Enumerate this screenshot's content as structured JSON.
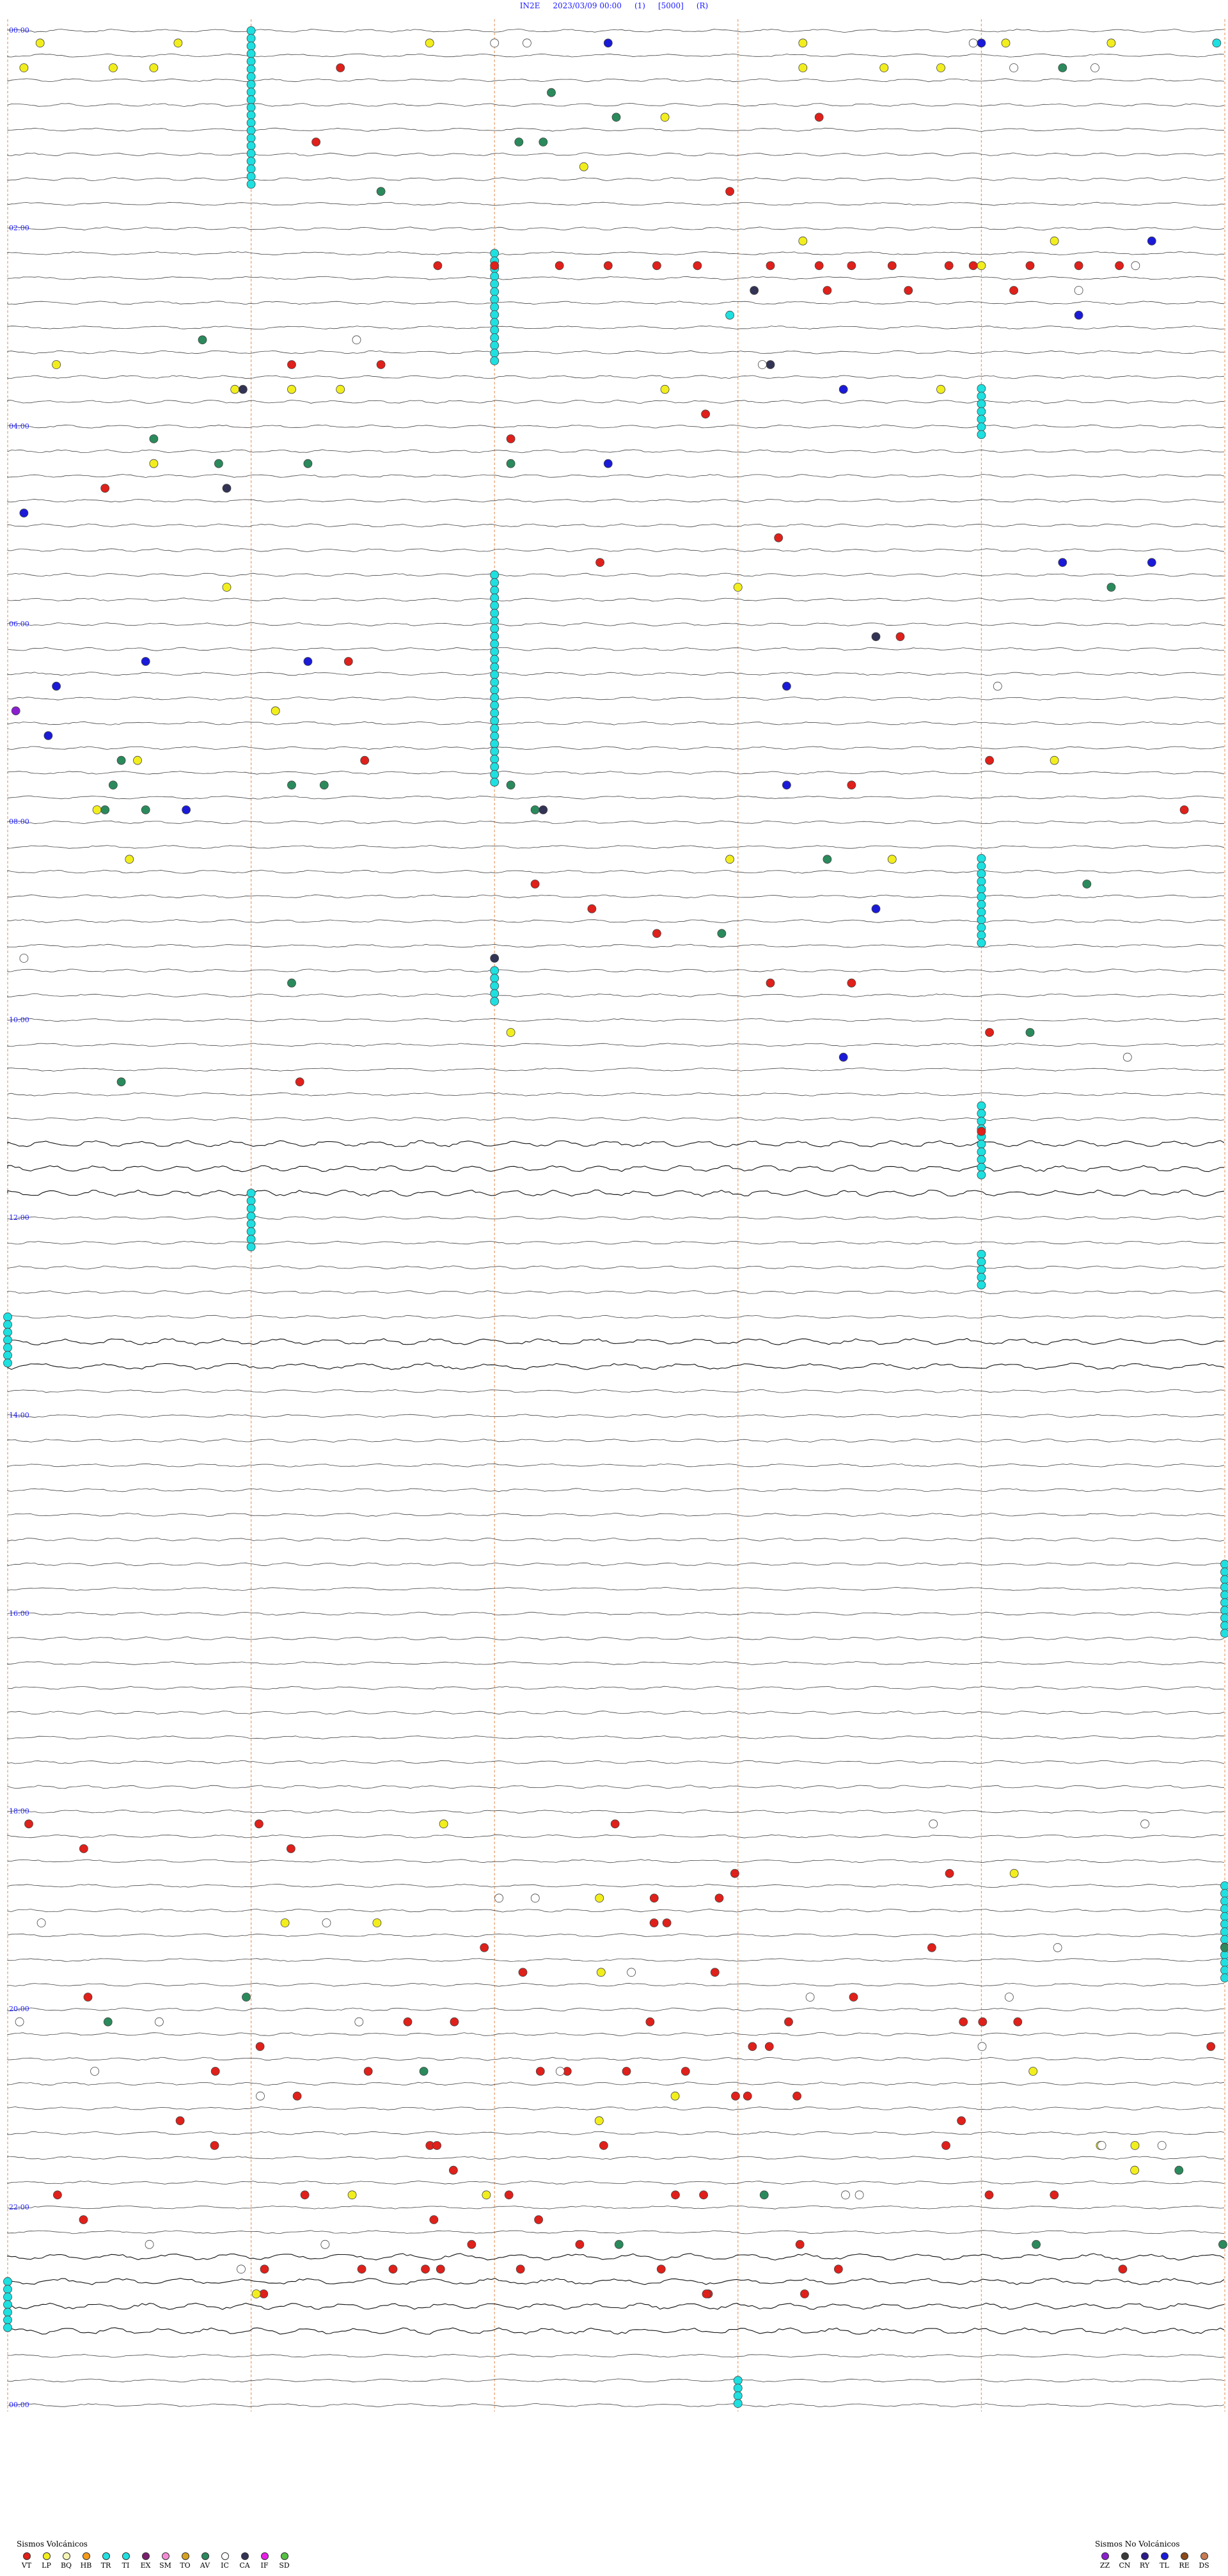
{
  "header": {
    "station": "IN2E",
    "datetime": "2023/03/09 00:00",
    "mode": "(1)",
    "gain": "[5000]",
    "flag": "(R)"
  },
  "time_labels": [
    "00:00",
    "02:00",
    "04:00",
    "06:00",
    "08:00",
    "10:00",
    "12:00",
    "14:00",
    "16:00",
    "18:00",
    "20:00",
    "22:00",
    "00:00"
  ],
  "legend": {
    "volcanic": {
      "title": "Sismos Volcánicos",
      "items": [
        {
          "code": "VT",
          "color": "#e0201a"
        },
        {
          "code": "LP",
          "color": "#f2ee1e"
        },
        {
          "code": "BQ",
          "color": "#f5f5b8"
        },
        {
          "code": "HB",
          "color": "#f39a1c"
        },
        {
          "code": "TR",
          "color": "#21e0e0"
        },
        {
          "code": "TI",
          "color": "#1ee0e0"
        },
        {
          "code": "EX",
          "color": "#7a1f6e"
        },
        {
          "code": "SM",
          "color": "#f58bd6"
        },
        {
          "code": "TO",
          "color": "#d8a21e"
        },
        {
          "code": "AV",
          "color": "#2a8a5c"
        },
        {
          "code": "IC",
          "color": "#ffffff"
        },
        {
          "code": "CA",
          "color": "#333355"
        },
        {
          "code": "IF",
          "color": "#e81ee8"
        },
        {
          "code": "SD",
          "color": "#55c043"
        }
      ]
    },
    "non_volcanic": {
      "title": "Sismos No Volcánicos",
      "items": [
        {
          "code": "ZZ",
          "color": "#8a1fcf"
        },
        {
          "code": "CN",
          "color": "#3a3a3a"
        },
        {
          "code": "RY",
          "color": "#2a1a8a"
        },
        {
          "code": "TL",
          "color": "#1a1ad8"
        },
        {
          "code": "RE",
          "color": "#8a4a1a"
        },
        {
          "code": "DS",
          "color": "#c87a52"
        }
      ]
    }
  },
  "chart_data": {
    "type": "scatter",
    "title": "IN2E 2023/03/09 00:00 (1) [5000] (R)",
    "x_unit": "minutes within 15-min line",
    "xlim": [
      0,
      15
    ],
    "ylim": [
      "00:00",
      "24:00"
    ],
    "y_unit": "hour of day",
    "grid": true,
    "legend_position": "bottom",
    "note_colors": "see legend",
    "events": [
      {
        "t": "00:01",
        "x": 0.4,
        "code": "LP"
      },
      {
        "t": "00:01",
        "x": 2.1,
        "code": "LP"
      },
      {
        "t": "00:01",
        "x": 5.2,
        "code": "LP"
      },
      {
        "t": "00:01",
        "x": 6.4,
        "code": "IC"
      },
      {
        "t": "00:01",
        "x": 9.8,
        "code": "LP"
      },
      {
        "t": "00:01",
        "x": 11.9,
        "code": "IC"
      },
      {
        "t": "00:01",
        "x": 14.9,
        "code": "TI"
      },
      {
        "t": "00:11",
        "x": 6.0,
        "code": "IC"
      },
      {
        "t": "00:11",
        "x": 7.4,
        "code": "TL"
      },
      {
        "t": "00:11",
        "x": 12.0,
        "code": "TL"
      },
      {
        "t": "00:11",
        "x": 12.3,
        "code": "LP"
      },
      {
        "t": "00:11",
        "x": 13.6,
        "code": "LP"
      },
      {
        "t": "00:15",
        "x": 0.2,
        "code": "LP"
      },
      {
        "t": "00:15",
        "x": 1.3,
        "code": "LP"
      },
      {
        "t": "00:15",
        "x": 1.8,
        "code": "LP"
      },
      {
        "t": "00:15",
        "x": 9.8,
        "code": "LP"
      },
      {
        "t": "00:15",
        "x": 10.8,
        "code": "LP"
      },
      {
        "t": "00:15",
        "x": 11.5,
        "code": "LP"
      },
      {
        "t": "00:15",
        "x": 12.4,
        "code": "IC"
      },
      {
        "t": "00:15",
        "x": 13.4,
        "code": "IC"
      },
      {
        "t": "00:22",
        "x": 4.1,
        "code": "VT"
      },
      {
        "t": "00:22",
        "x": 13.0,
        "code": "AV"
      },
      {
        "t": "00:37",
        "x": 6.7,
        "code": "AV"
      },
      {
        "t": "00:45",
        "x": 7.5,
        "code": "AV"
      },
      {
        "t": "00:52",
        "x": 8.1,
        "code": "LP"
      },
      {
        "t": "00:52",
        "x": 10.0,
        "code": "VT"
      },
      {
        "t": "01:00",
        "x": 6.6,
        "code": "AV"
      },
      {
        "t": "01:11",
        "x": 3.8,
        "code": "VT"
      },
      {
        "t": "01:11",
        "x": 6.3,
        "code": "AV"
      },
      {
        "t": "01:22",
        "x": 7.1,
        "code": "LP"
      },
      {
        "t": "01:30",
        "x": 8.9,
        "code": "VT"
      },
      {
        "t": "01:37",
        "x": 4.6,
        "code": "AV"
      },
      {
        "t": "02:00",
        "x": 9.8,
        "code": "LP"
      },
      {
        "t": "02:00",
        "x": 12.9,
        "code": "LP"
      },
      {
        "t": "02:00",
        "x": 14.1,
        "code": "TL"
      },
      {
        "t": "02:15",
        "x": 12.0,
        "code": "LP"
      },
      {
        "t": "02:15",
        "x": 13.9,
        "code": "IC"
      },
      {
        "t": "02:22",
        "x": 5.3,
        "code": "VT"
      },
      {
        "t": "02:22",
        "x": 6.0,
        "code": "VT"
      },
      {
        "t": "02:22",
        "x": 6.8,
        "code": "VT"
      },
      {
        "t": "02:22",
        "x": 7.4,
        "code": "VT"
      },
      {
        "t": "02:22",
        "x": 8.0,
        "code": "VT"
      },
      {
        "t": "02:22",
        "x": 8.5,
        "code": "VT"
      },
      {
        "t": "02:22",
        "x": 9.4,
        "code": "VT"
      },
      {
        "t": "02:22",
        "x": 10.0,
        "code": "VT"
      },
      {
        "t": "02:22",
        "x": 10.4,
        "code": "VT"
      },
      {
        "t": "02:22",
        "x": 10.9,
        "code": "VT"
      },
      {
        "t": "02:22",
        "x": 11.6,
        "code": "VT"
      },
      {
        "t": "02:22",
        "x": 11.9,
        "code": "VT"
      },
      {
        "t": "02:22",
        "x": 12.6,
        "code": "VT"
      },
      {
        "t": "02:22",
        "x": 13.2,
        "code": "VT"
      },
      {
        "t": "02:22",
        "x": 13.7,
        "code": "VT"
      },
      {
        "t": "02:30",
        "x": 10.1,
        "code": "VT"
      },
      {
        "t": "02:30",
        "x": 11.1,
        "code": "VT"
      },
      {
        "t": "02:30",
        "x": 12.4,
        "code": "VT"
      },
      {
        "t": "02:37",
        "x": 9.2,
        "code": "CA"
      },
      {
        "t": "02:37",
        "x": 13.2,
        "code": "IC"
      },
      {
        "t": "02:45",
        "x": 13.2,
        "code": "TL"
      },
      {
        "t": "02:45",
        "x": 8.9,
        "code": "TI"
      },
      {
        "t": "03:00",
        "x": 2.4,
        "code": "AV"
      },
      {
        "t": "03:00",
        "x": 4.3,
        "code": "IC"
      },
      {
        "t": "03:15",
        "x": 9.4,
        "code": "CA"
      },
      {
        "t": "03:22",
        "x": 0.6,
        "code": "LP"
      },
      {
        "t": "03:22",
        "x": 3.5,
        "code": "VT"
      },
      {
        "t": "03:22",
        "x": 4.6,
        "code": "VT"
      },
      {
        "t": "03:22",
        "x": 9.3,
        "code": "IC"
      },
      {
        "t": "03:30",
        "x": 10.3,
        "code": "TL"
      },
      {
        "t": "03:37",
        "x": 2.8,
        "code": "LP"
      },
      {
        "t": "03:37",
        "x": 3.5,
        "code": "LP"
      },
      {
        "t": "03:37",
        "x": 4.1,
        "code": "LP"
      },
      {
        "t": "03:37",
        "x": 8.1,
        "code": "LP"
      },
      {
        "t": "03:37",
        "x": 11.5,
        "code": "LP"
      },
      {
        "t": "03:37",
        "x": 2.9,
        "code": "CA"
      },
      {
        "t": "03:45",
        "x": 8.6,
        "code": "VT"
      },
      {
        "t": "04:00",
        "x": 1.8,
        "code": "AV"
      },
      {
        "t": "04:00",
        "x": 6.2,
        "code": "VT"
      },
      {
        "t": "04:15",
        "x": 1.8,
        "code": "LP"
      },
      {
        "t": "04:22",
        "x": 2.6,
        "code": "AV"
      },
      {
        "t": "04:22",
        "x": 3.7,
        "code": "AV"
      },
      {
        "t": "04:22",
        "x": 6.2,
        "code": "AV"
      },
      {
        "t": "04:22",
        "x": 7.4,
        "code": "TL"
      },
      {
        "t": "04:30",
        "x": 1.2,
        "code": "VT"
      },
      {
        "t": "04:30",
        "x": 2.7,
        "code": "CA"
      },
      {
        "t": "04:45",
        "x": 0.2,
        "code": "TL"
      },
      {
        "t": "05:00",
        "x": 9.5,
        "code": "VT"
      },
      {
        "t": "05:15",
        "x": 13.0,
        "code": "TL"
      },
      {
        "t": "05:15",
        "x": 14.1,
        "code": "TL"
      },
      {
        "t": "05:22",
        "x": 7.3,
        "code": "VT"
      },
      {
        "t": "05:30",
        "x": 9.0,
        "code": "LP"
      },
      {
        "t": "05:37",
        "x": 2.7,
        "code": "LP"
      },
      {
        "t": "05:37",
        "x": 13.6,
        "code": "AV"
      },
      {
        "t": "06:00",
        "x": 11.0,
        "code": "VT"
      },
      {
        "t": "06:07",
        "x": 10.7,
        "code": "CA"
      },
      {
        "t": "06:15",
        "x": 1.7,
        "code": "TL"
      },
      {
        "t": "06:22",
        "x": 3.7,
        "code": "TL"
      },
      {
        "t": "06:22",
        "x": 4.2,
        "code": "VT"
      },
      {
        "t": "06:30",
        "x": 9.6,
        "code": "TL"
      },
      {
        "t": "06:37",
        "x": 12.2,
        "code": "IC"
      },
      {
        "t": "06:37",
        "x": 0.6,
        "code": "TL"
      },
      {
        "t": "06:52",
        "x": 0.1,
        "code": "ZZ"
      },
      {
        "t": "06:52",
        "x": 3.3,
        "code": "LP"
      },
      {
        "t": "07:07",
        "x": 0.5,
        "code": "TL"
      },
      {
        "t": "07:15",
        "x": 4.4,
        "code": "VT"
      },
      {
        "t": "07:22",
        "x": 1.4,
        "code": "AV"
      },
      {
        "t": "07:22",
        "x": 1.6,
        "code": "LP"
      },
      {
        "t": "07:22",
        "x": 12.1,
        "code": "VT"
      },
      {
        "t": "07:22",
        "x": 12.9,
        "code": "LP"
      },
      {
        "t": "07:30",
        "x": 9.6,
        "code": "TL"
      },
      {
        "t": "07:30",
        "x": 3.5,
        "code": "AV"
      },
      {
        "t": "07:30",
        "x": 6.2,
        "code": "AV"
      },
      {
        "t": "07:37",
        "x": 1.3,
        "code": "AV"
      },
      {
        "t": "07:37",
        "x": 3.9,
        "code": "AV"
      },
      {
        "t": "07:37",
        "x": 10.4,
        "code": "VT"
      },
      {
        "t": "07:45",
        "x": 1.1,
        "code": "LP"
      },
      {
        "t": "07:45",
        "x": 1.7,
        "code": "AV"
      },
      {
        "t": "07:45",
        "x": 6.5,
        "code": "AV"
      },
      {
        "t": "07:45",
        "x": 14.5,
        "code": "VT"
      },
      {
        "t": "07:52",
        "x": 1.2,
        "code": "AV"
      },
      {
        "t": "07:52",
        "x": 2.2,
        "code": "TL"
      },
      {
        "t": "07:52",
        "x": 6.6,
        "code": "CA"
      },
      {
        "t": "08:15",
        "x": 8.9,
        "code": "LP"
      },
      {
        "t": "08:15",
        "x": 10.1,
        "code": "AV"
      },
      {
        "t": "08:22",
        "x": 1.5,
        "code": "LP"
      },
      {
        "t": "08:22",
        "x": 10.9,
        "code": "LP"
      },
      {
        "t": "08:30",
        "x": 13.3,
        "code": "AV"
      },
      {
        "t": "08:37",
        "x": 6.5,
        "code": "VT"
      },
      {
        "t": "08:45",
        "x": 10.7,
        "code": "TL"
      },
      {
        "t": "08:52",
        "x": 7.2,
        "code": "VT"
      },
      {
        "t": "09:00",
        "x": 8.0,
        "code": "VT"
      },
      {
        "t": "09:00",
        "x": 8.8,
        "code": "AV"
      },
      {
        "t": "09:15",
        "x": 0.2,
        "code": "IC"
      },
      {
        "t": "09:15",
        "x": 6.0,
        "code": "CA"
      },
      {
        "t": "09:30",
        "x": 3.5,
        "code": "AV"
      },
      {
        "t": "09:30",
        "x": 9.4,
        "code": "VT"
      },
      {
        "t": "09:37",
        "x": 10.4,
        "code": "VT"
      },
      {
        "t": "10:00",
        "x": 6.2,
        "code": "LP"
      },
      {
        "t": "10:00",
        "x": 12.1,
        "code": "VT"
      },
      {
        "t": "10:07",
        "x": 12.6,
        "code": "AV"
      },
      {
        "t": "10:15",
        "x": 10.3,
        "code": "TL"
      },
      {
        "t": "10:15",
        "x": 13.8,
        "code": "IC"
      },
      {
        "t": "10:30",
        "x": 3.6,
        "code": "VT"
      },
      {
        "t": "10:37",
        "x": 1.4,
        "code": "AV"
      },
      {
        "t": "11:00",
        "x": 12.0,
        "code": "VT"
      }
    ],
    "cyan_tremor_markers": [
      {
        "from": "00:00",
        "to": "01:37",
        "x": 3.0
      },
      {
        "from": "02:15",
        "to": "03:22",
        "x": 6.0
      },
      {
        "from": "03:37",
        "to": "04:07",
        "x": 12.0
      },
      {
        "from": "05:30",
        "to": "07:37",
        "x": 6.0
      },
      {
        "from": "08:22",
        "to": "09:15",
        "x": 12.0
      },
      {
        "from": "09:30",
        "to": "09:52",
        "x": 6.0
      },
      {
        "from": "10:52",
        "to": "11:37",
        "x": 12.0
      },
      {
        "from": "11:45",
        "to": "12:22",
        "x": 3.0
      },
      {
        "from": "12:22",
        "to": "12:45",
        "x": 12.0
      },
      {
        "from": "13:00",
        "to": "13:30",
        "x": 0.0
      },
      {
        "from": "15:30",
        "to": "16:15",
        "x": 15.0
      },
      {
        "from": "18:45",
        "to": "19:45",
        "x": 15.0
      },
      {
        "from": "22:45",
        "to": "23:15",
        "x": 0.0
      },
      {
        "from": "23:45",
        "to": "24:00",
        "x": 9.0
      }
    ]
  }
}
